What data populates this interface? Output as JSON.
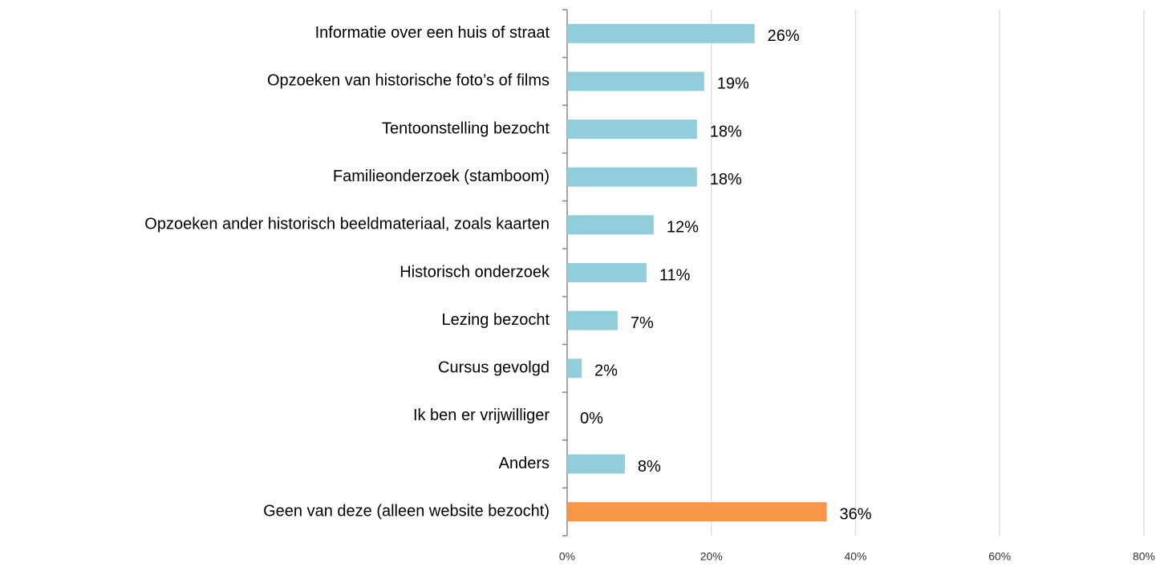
{
  "chart_data": {
    "type": "barh",
    "categories": [
      "Informatie over een huis of straat",
      "Opzoeken van historische foto’s of films",
      "Tentoonstelling bezocht",
      "Familieonderzoek (stamboom)",
      "Opzoeken ander historisch beeldmateriaal, zoals kaarten",
      "Historisch onderzoek",
      "Lezing bezocht",
      "Cursus gevolgd",
      "Ik ben er vrijwilliger",
      "Anders",
      "Geen van deze (alleen website bezocht)"
    ],
    "values": [
      26,
      19,
      18,
      18,
      12,
      11,
      7,
      2,
      0,
      8,
      36
    ],
    "value_labels": [
      "26%",
      "19%",
      "18%",
      "18%",
      "12%",
      "11%",
      "7%",
      "2%",
      "0%",
      "8%",
      "36%"
    ],
    "colors": [
      "#92cddc",
      "#92cddc",
      "#92cddc",
      "#92cddc",
      "#92cddc",
      "#92cddc",
      "#92cddc",
      "#92cddc",
      "#92cddc",
      "#92cddc",
      "#f79646"
    ],
    "xlim": [
      0,
      80
    ],
    "xticks": [
      {
        "value": 0,
        "label": "0%"
      },
      {
        "value": 20,
        "label": "20%"
      },
      {
        "value": 40,
        "label": "40%"
      },
      {
        "value": 60,
        "label": "60%"
      },
      {
        "value": 80,
        "label": "80%"
      }
    ],
    "grid": true
  }
}
